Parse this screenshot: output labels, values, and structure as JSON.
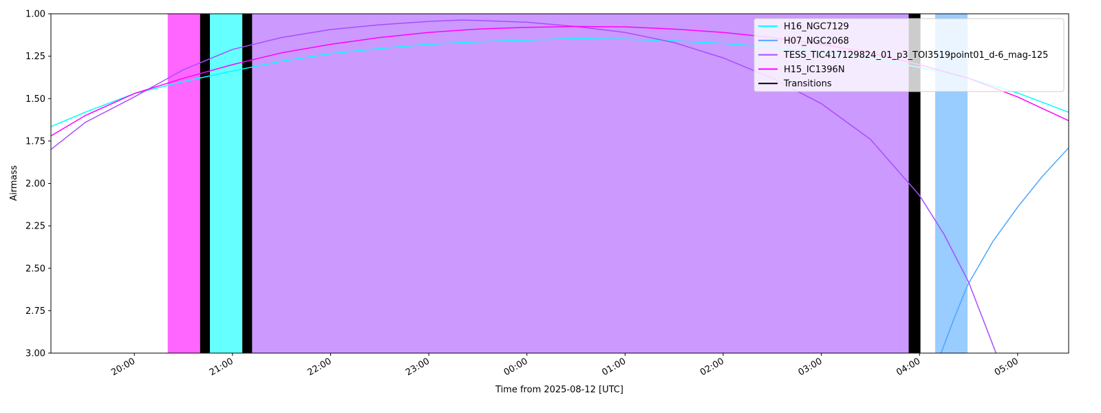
{
  "chart_data": {
    "type": "line",
    "xlabel": "Time from 2025-08-12 [UTC]",
    "ylabel": "Airmass",
    "xlim": [
      19.15,
      29.52
    ],
    "ylim": [
      3,
      1
    ],
    "xticks": [
      {
        "value": 20,
        "label": "20:00"
      },
      {
        "value": 21,
        "label": "21:00"
      },
      {
        "value": 22,
        "label": "22:00"
      },
      {
        "value": 23,
        "label": "23:00"
      },
      {
        "value": 24,
        "label": "00:00"
      },
      {
        "value": 25,
        "label": "01:00"
      },
      {
        "value": 26,
        "label": "02:00"
      },
      {
        "value": 27,
        "label": "03:00"
      },
      {
        "value": 28,
        "label": "04:00"
      },
      {
        "value": 29,
        "label": "05:00"
      }
    ],
    "yticks": [
      {
        "value": 1,
        "label": "1.00"
      },
      {
        "value": 1.25,
        "label": "1.25"
      },
      {
        "value": 1.5,
        "label": "1.50"
      },
      {
        "value": 1.75,
        "label": "1.75"
      },
      {
        "value": 2,
        "label": "2.00"
      },
      {
        "value": 2.25,
        "label": "2.25"
      },
      {
        "value": 2.5,
        "label": "2.50"
      },
      {
        "value": 2.75,
        "label": "2.75"
      },
      {
        "value": 3,
        "label": "3.00"
      }
    ],
    "spans": [
      {
        "start": 20.34,
        "end": 20.67,
        "color": "#ff66ff"
      },
      {
        "start": 20.77,
        "end": 21.1,
        "color": "#66ffff"
      },
      {
        "start": 21.2,
        "end": 27.89,
        "color": "#cc99ff"
      },
      {
        "start": 28.16,
        "end": 28.49,
        "color": "#99ccff"
      }
    ],
    "transitions": {
      "name": "Transitions",
      "color": "#000000",
      "spans": [
        {
          "start": 20.67,
          "end": 20.77
        },
        {
          "start": 21.1,
          "end": 21.2
        },
        {
          "start": 27.89,
          "end": 28.01
        }
      ]
    },
    "series": [
      {
        "name": "H16_NGC7129",
        "color": "#00ffff",
        "x": [
          19.15,
          19.5,
          20,
          20.5,
          21,
          21.5,
          22,
          22.5,
          23,
          23.5,
          24,
          24.5,
          25,
          25.5,
          26,
          26.5,
          27,
          27.5,
          28,
          28.5,
          29,
          29.52
        ],
        "values": [
          1.665,
          1.58,
          1.47,
          1.4,
          1.337,
          1.28,
          1.235,
          1.205,
          1.18,
          1.165,
          1.155,
          1.146,
          1.15,
          1.16,
          1.175,
          1.198,
          1.227,
          1.265,
          1.316,
          1.38,
          1.467,
          1.58
        ]
      },
      {
        "name": "H07_NGC2068",
        "color": "#4da6ff",
        "x": [
          28.22,
          28.35,
          28.49,
          28.75,
          29,
          29.25,
          29.52
        ],
        "values": [
          3.0,
          2.8,
          2.6,
          2.34,
          2.14,
          1.96,
          1.79
        ]
      },
      {
        "name": "TESS_TIC417129824_01_p3_TOI3519point01_d-6_mag-125",
        "color": "#a64dff",
        "x": [
          19.15,
          19.5,
          20,
          20.5,
          21,
          21.5,
          22,
          22.5,
          23,
          23.33,
          23.5,
          24,
          24.5,
          25,
          25.5,
          26,
          26.5,
          27,
          27.5,
          28,
          28.25,
          28.5,
          28.78
        ],
        "values": [
          1.8,
          1.64,
          1.49,
          1.33,
          1.21,
          1.14,
          1.093,
          1.065,
          1.045,
          1.037,
          1.039,
          1.05,
          1.075,
          1.11,
          1.17,
          1.26,
          1.38,
          1.53,
          1.74,
          2.07,
          2.3,
          2.58,
          3.0
        ]
      },
      {
        "name": "H15_IC1396N",
        "color": "#ff00ff",
        "x": [
          19.15,
          19.5,
          20,
          20.5,
          21,
          21.5,
          22,
          22.5,
          23,
          23.5,
          24,
          24.5,
          25,
          25.5,
          26,
          26.5,
          27,
          27.5,
          28,
          28.5,
          29,
          29.52
        ],
        "values": [
          1.72,
          1.6,
          1.47,
          1.38,
          1.3,
          1.23,
          1.18,
          1.14,
          1.11,
          1.09,
          1.08,
          1.075,
          1.077,
          1.09,
          1.11,
          1.14,
          1.18,
          1.23,
          1.3,
          1.38,
          1.49,
          1.63
        ]
      }
    ]
  }
}
